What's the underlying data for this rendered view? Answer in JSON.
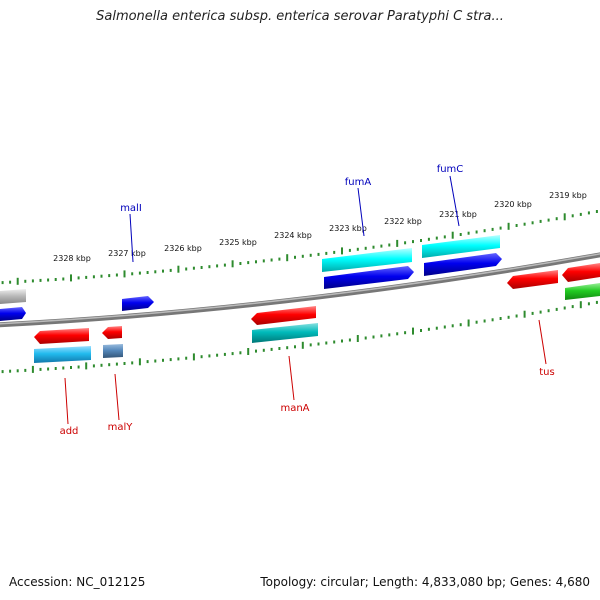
{
  "title": "Salmonella enterica subsp. enterica serovar Paratyphi C stra...",
  "accession": "Accession: NC_012125",
  "summary": "Topology: circular; Length: 4,833,080 bp; Genes: 4,680",
  "colors": {
    "backbone": "#808080",
    "ticks": "#2e8b2e",
    "label_top": "#0000bb",
    "label_bottom": "#cc0000",
    "red": "#ff0000",
    "cyan": "#00ffff",
    "blue": "#0000ee",
    "skyblue": "#22bbee",
    "teal": "#00bbbb",
    "green": "#22cc22",
    "grey": "#bbbbbb",
    "steel": "#5588bb"
  },
  "scale_labels": [
    "2328 kbp",
    "2327 kbp",
    "2326 kbp",
    "2325 kbp",
    "2324 kbp",
    "2323 kbp",
    "2322 kbp",
    "2321 kbp",
    "2320 kbp",
    "2319 kbp"
  ],
  "gene_labels_top": [
    "malI",
    "fumA",
    "fumC"
  ],
  "gene_labels_bottom": [
    "add",
    "malY",
    "manA",
    "tus"
  ]
}
